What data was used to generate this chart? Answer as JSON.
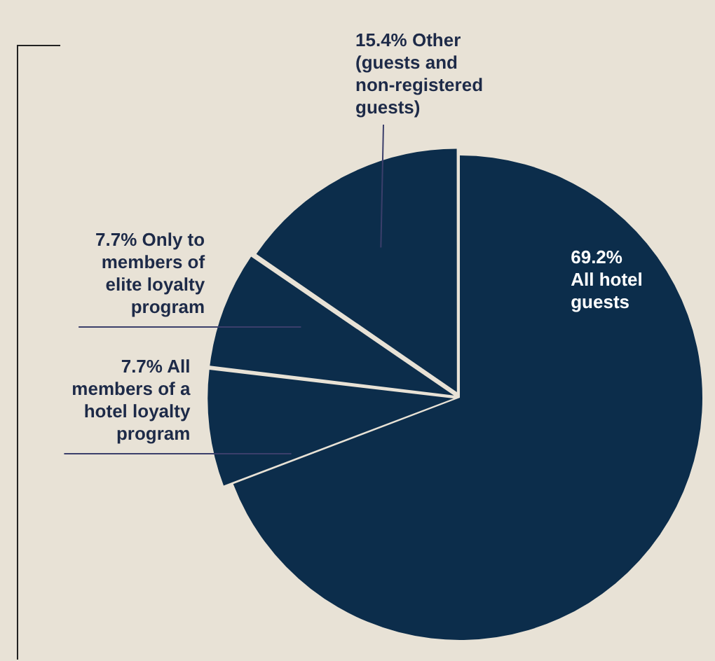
{
  "chart_data": {
    "type": "pie",
    "categories": [
      "All hotel guests",
      "All members of a hotel loyalty program",
      "Only to members of elite loyalty program",
      "Other (guests and non-registered guests)"
    ],
    "values": [
      69.2,
      7.7,
      7.7,
      15.4
    ],
    "value_labels": [
      "69.2%",
      "7.7%",
      "7.7%",
      "15.4%"
    ],
    "colors": [
      "#0c2d4b",
      "#0c2d4b",
      "#0c2d4b",
      "#0c2d4b"
    ],
    "legend": false
  }
}
